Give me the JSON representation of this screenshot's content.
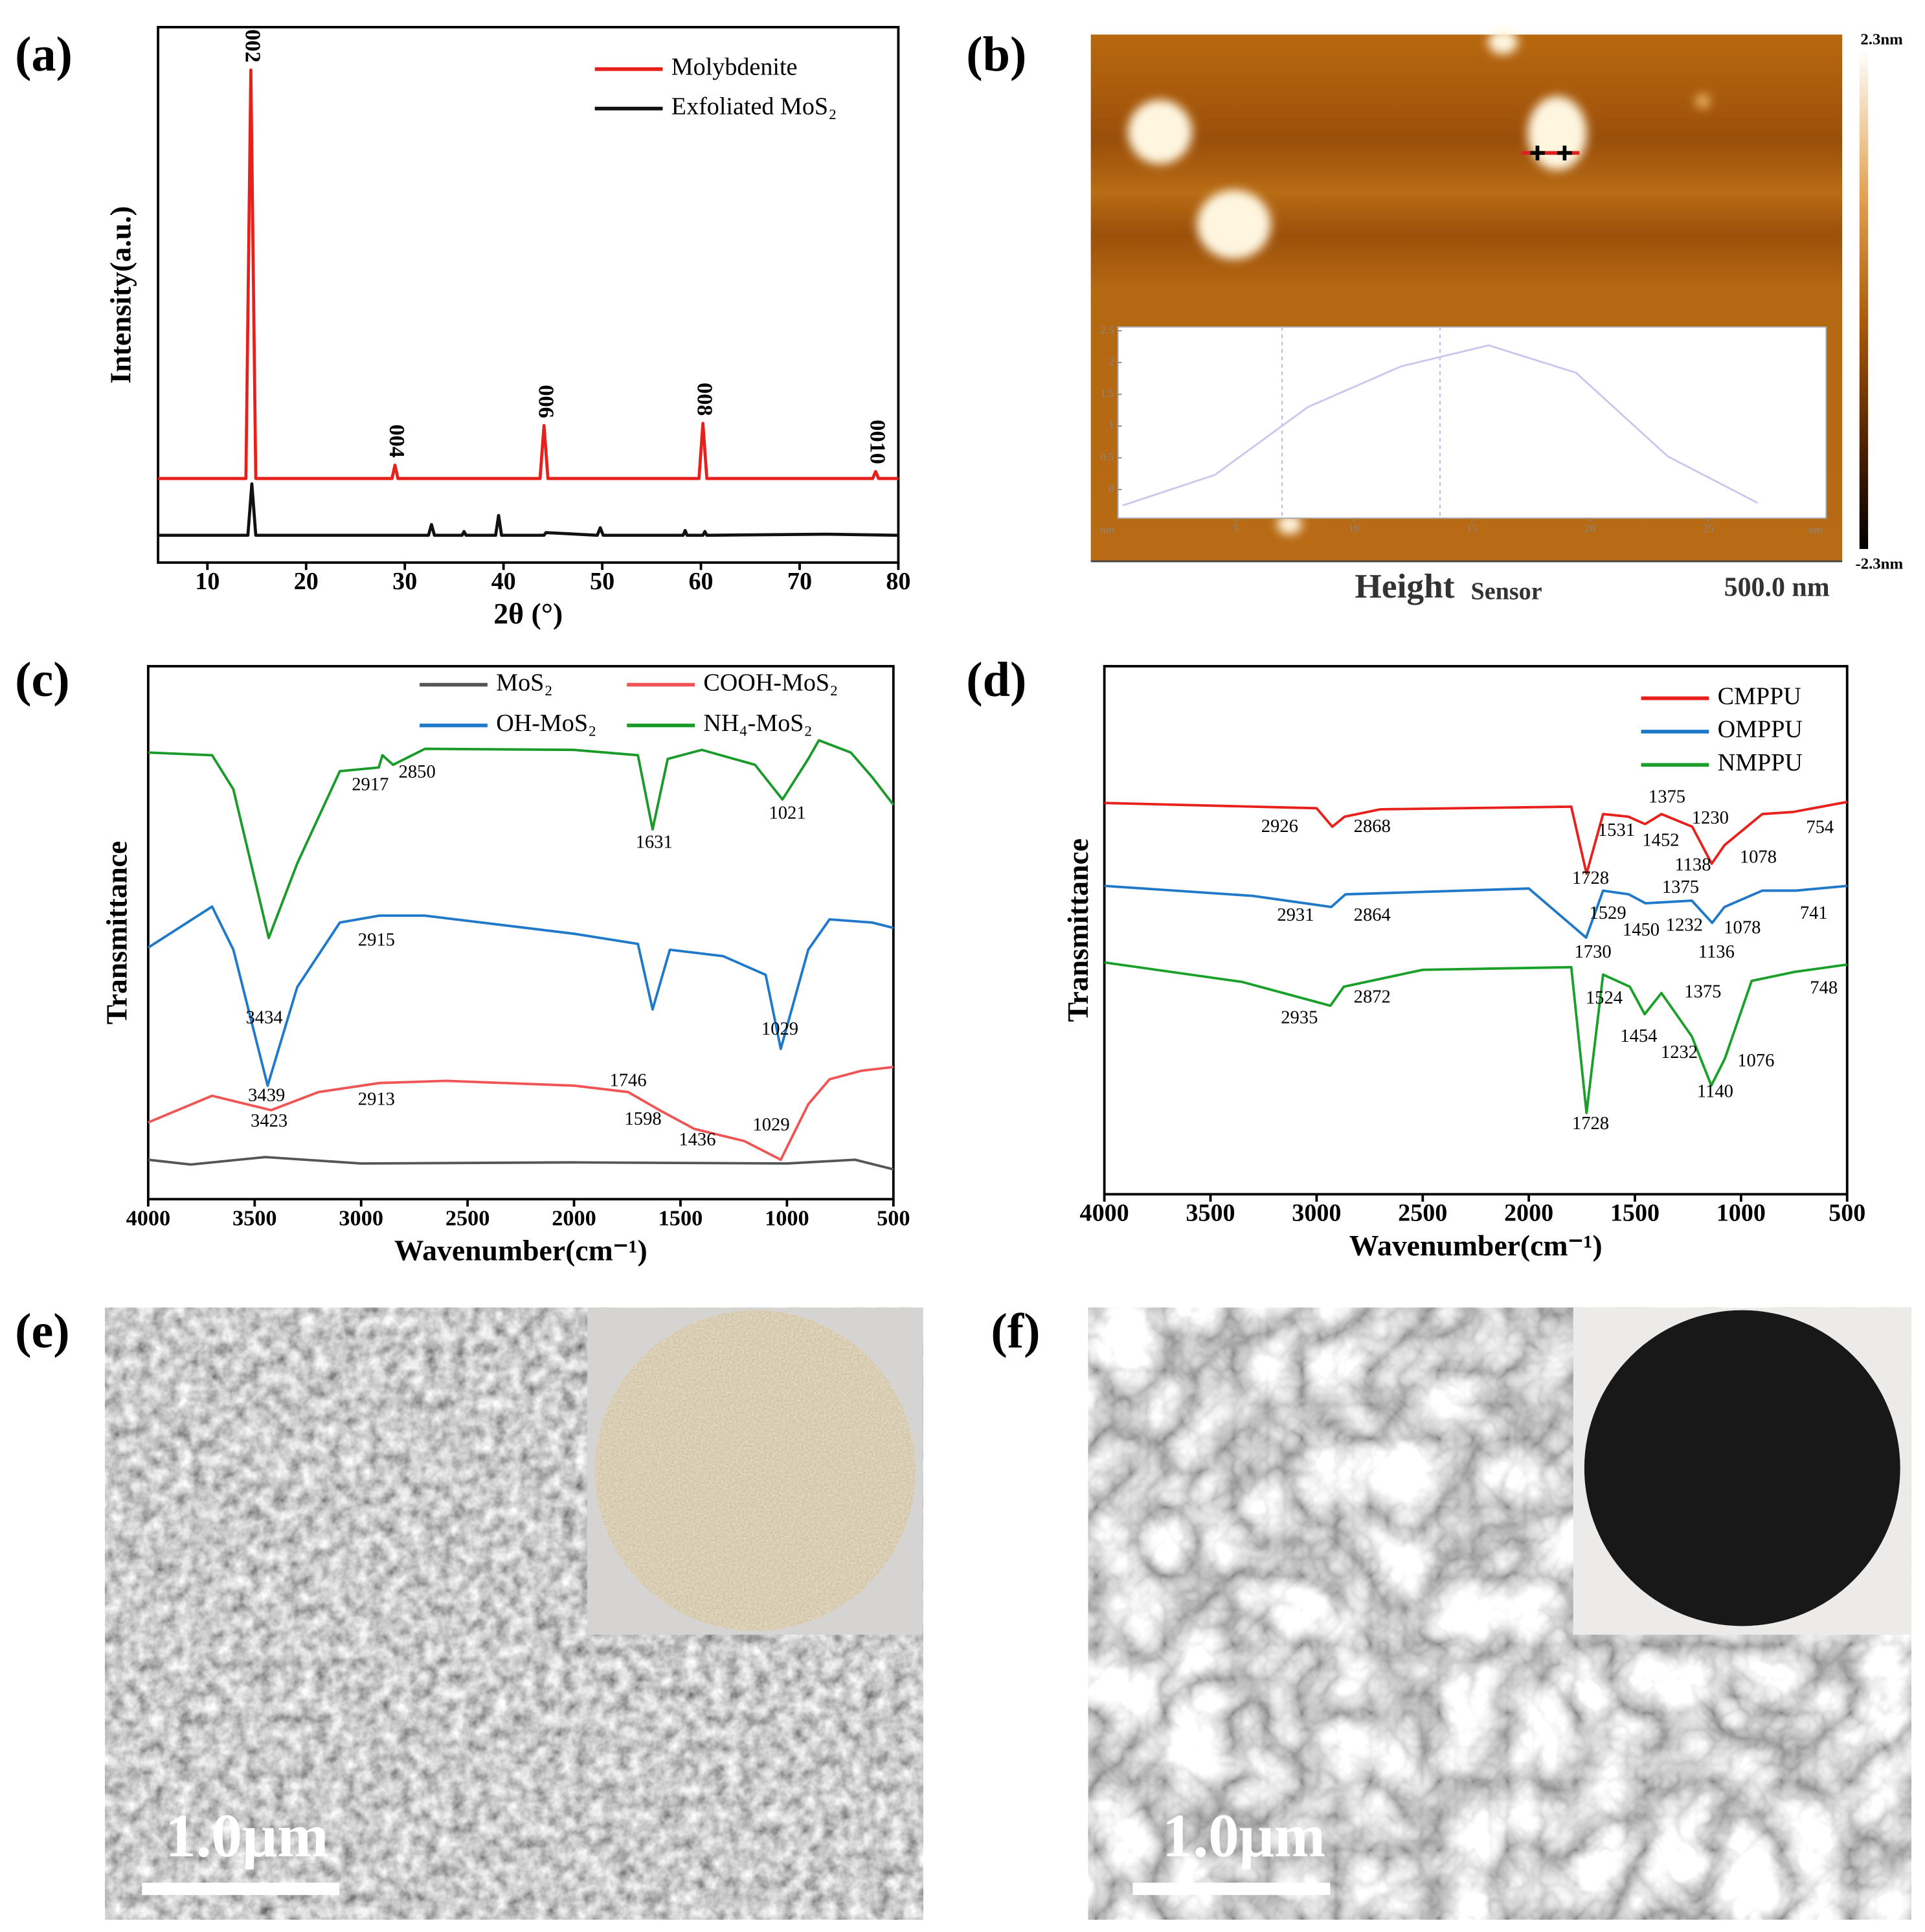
{
  "panel_labels": [
    "(a)",
    "(b)",
    "(c)",
    "(d)",
    "(e)",
    "(f)"
  ],
  "chart_data": [
    {
      "type": "line",
      "xlabel": "2θ (°)",
      "ylabel": "Intensity(a.u.)",
      "xlim": [
        5,
        80
      ],
      "ylim": [
        0,
        100
      ],
      "xticks": [
        10,
        20,
        30,
        40,
        50,
        60,
        70,
        80
      ],
      "legend": "upper right",
      "legend_columns": 1,
      "annotation_rotation": 90,
      "series": [
        {
          "name": "Molybdenite",
          "color": "#e8201c",
          "x": [
            5,
            13.9,
            14.4,
            14.9,
            28.7,
            29.0,
            29.3,
            43.7,
            44.1,
            44.5,
            59.8,
            60.2,
            60.6,
            77.4,
            77.7,
            78.0,
            80
          ],
          "values": [
            15.7,
            15.7,
            92,
            15.7,
            15.7,
            18.2,
            15.7,
            15.7,
            25.6,
            15.7,
            15.7,
            26,
            15.7,
            15.7,
            17,
            15.7,
            15.7
          ]
        },
        {
          "name": "Exfoliated MoS₂",
          "color": "#111111",
          "x": [
            5,
            14.1,
            14.5,
            14.9,
            32.4,
            32.7,
            33.0,
            35.8,
            36.0,
            36.2,
            39.2,
            39.5,
            39.8,
            44.1,
            44.3,
            49.5,
            49.8,
            50.1,
            58.2,
            58.4,
            58.6,
            60.2,
            60.4,
            60.6,
            73,
            80
          ],
          "values": [
            5.1,
            5.1,
            14.7,
            5.1,
            5.1,
            7.1,
            5.1,
            5.1,
            5.8,
            5.1,
            5.1,
            8.8,
            5.1,
            5.1,
            5.6,
            5.1,
            6.5,
            5.1,
            5.1,
            6,
            5.1,
            5.1,
            5.8,
            5.1,
            5.3,
            5.1
          ]
        }
      ],
      "annotations": [
        {
          "text": "002",
          "x": 14.4,
          "y": 92
        },
        {
          "text": "004",
          "x": 29.0,
          "y": 18.2
        },
        {
          "text": "006",
          "x": 44.1,
          "y": 25.6
        },
        {
          "text": "008",
          "x": 60.2,
          "y": 26
        },
        {
          "text": "0010",
          "x": 77.7,
          "y": 17
        }
      ]
    },
    {
      "type": "line",
      "xlabel": "Wavenumber(cm⁻¹)",
      "ylabel": "Transmittance",
      "xlim": [
        4000,
        500
      ],
      "ylim": [
        0,
        100
      ],
      "xticks": [
        4000,
        3500,
        3000,
        2500,
        2000,
        1500,
        1000,
        500
      ],
      "legend": "upper right",
      "legend_columns": 2,
      "series": [
        {
          "name": "MoS₂",
          "color": "#555555",
          "x": [
            4000,
            3800,
            3450,
            3000,
            2000,
            1000,
            680,
            500
          ],
          "values": [
            7.4,
            6.5,
            7.9,
            6.7,
            6.9,
            6.7,
            7.4,
            5.6
          ]
        },
        {
          "name": "COOH-MoS₂",
          "color": "#f05555",
          "x": [
            4000,
            3700,
            3423,
            3200,
            2913,
            2600,
            2000,
            1746,
            1598,
            1436,
            1200,
            1029,
            900,
            800,
            650,
            500
          ],
          "values": [
            14.4,
            19.4,
            16.7,
            20.1,
            21.8,
            22.2,
            21.3,
            20.1,
            16.7,
            13.2,
            10.9,
            7.4,
            17.8,
            22.5,
            24.1,
            24.8
          ]
        },
        {
          "name": "OH-MoS₂",
          "color": "#1f78c8",
          "x": [
            4000,
            3700,
            3600,
            3439,
            3300,
            3100,
            2915,
            2700,
            2000,
            1700,
            1631,
            1550,
            1300,
            1100,
            1029,
            900,
            800,
            600,
            500
          ],
          "values": [
            47.2,
            54.9,
            46.8,
            21.3,
            39.8,
            51.9,
            53.2,
            53.2,
            49.8,
            47.9,
            35.6,
            46.8,
            45.6,
            42.1,
            28.2,
            46.8,
            52.5,
            51.9,
            50.9
          ]
        },
        {
          "name": "NH₄-MoS₂",
          "color": "#1a9a2a",
          "x": [
            4000,
            3700,
            3600,
            3434,
            3300,
            3100,
            2917,
            2900,
            2850,
            2700,
            2000,
            1700,
            1631,
            1560,
            1400,
            1150,
            1021,
            900,
            850,
            700,
            600,
            500
          ],
          "values": [
            83.8,
            83.3,
            76.9,
            49,
            63,
            80.3,
            81,
            83.3,
            81.5,
            84.5,
            84.3,
            83.3,
            69.4,
            82.6,
            84.3,
            81.5,
            75,
            82.6,
            86.1,
            83.8,
            79.2,
            74
          ]
        }
      ],
      "annotations": [
        {
          "text": "2917",
          "x": 2957,
          "y": 77.5
        },
        {
          "text": "2850",
          "x": 2737,
          "y": 79.9
        },
        {
          "text": "1631",
          "x": 1624,
          "y": 66.7
        },
        {
          "text": "1021",
          "x": 998,
          "y": 72.2
        },
        {
          "text": "3434",
          "x": 3455,
          "y": 33.8
        },
        {
          "text": "2915",
          "x": 2928,
          "y": 48.4
        },
        {
          "text": "1029",
          "x": 1033,
          "y": 31.7
        },
        {
          "text": "3439",
          "x": 3444,
          "y": 19.2
        },
        {
          "text": "3423",
          "x": 3432,
          "y": 14.4
        },
        {
          "text": "2913",
          "x": 2928,
          "y": 18.5
        },
        {
          "text": "1746",
          "x": 1746,
          "y": 22
        },
        {
          "text": "1598",
          "x": 1676,
          "y": 14.8
        },
        {
          "text": "1436",
          "x": 1421,
          "y": 10.9
        },
        {
          "text": "1029",
          "x": 1074,
          "y": 13.7
        }
      ]
    },
    {
      "type": "line",
      "xlabel": "Wavenumber(cm⁻¹)",
      "ylabel": "Transmittance",
      "xlim": [
        4000,
        500
      ],
      "ylim": [
        0,
        100
      ],
      "xticks": [
        4000,
        3500,
        3000,
        2500,
        2000,
        1500,
        1000,
        500
      ],
      "legend": "upper right",
      "legend_columns": 1,
      "series": [
        {
          "name": "CMPPU",
          "color": "#e8201c",
          "x": [
            4000,
            3000,
            2926,
            2868,
            2700,
            1800,
            1728,
            1650,
            1531,
            1452,
            1375,
            1230,
            1138,
            1078,
            900,
            754,
            500
          ],
          "values": [
            74.1,
            73.1,
            69.6,
            71.5,
            72.9,
            73.4,
            60.7,
            72,
            71.5,
            70.1,
            72,
            69.6,
            62.6,
            66.1,
            72,
            72.4,
            74.3
          ]
        },
        {
          "name": "OMPPU",
          "color": "#1f78c8",
          "x": [
            4000,
            3300,
            2931,
            2864,
            2000,
            1730,
            1650,
            1529,
            1450,
            1232,
            1136,
            1078,
            900,
            741,
            500
          ],
          "values": [
            58.4,
            56.5,
            54.4,
            56.8,
            57.9,
            48.6,
            57.5,
            56.8,
            55.1,
            55.6,
            51.4,
            54.4,
            57.5,
            57.5,
            58.4
          ]
        },
        {
          "name": "NMPPU",
          "color": "#1aa02a",
          "x": [
            4000,
            3350,
            2935,
            2872,
            2500,
            1800,
            1728,
            1650,
            1524,
            1454,
            1375,
            1232,
            1140,
            1076,
            950,
            748,
            500
          ],
          "values": [
            43.9,
            40.2,
            35.7,
            39.3,
            42.5,
            43,
            15.4,
            41.6,
            39.3,
            34.1,
            38.1,
            29.9,
            20.6,
            25.7,
            40.4,
            42.1,
            43.5
          ]
        }
      ],
      "annotations": [
        {
          "text": "2926",
          "x": 3174,
          "y": 69.4
        },
        {
          "text": "2868",
          "x": 2738,
          "y": 69.4
        },
        {
          "text": "1531",
          "x": 1587,
          "y": 68.7
        },
        {
          "text": "1375",
          "x": 1349,
          "y": 75
        },
        {
          "text": "1452",
          "x": 1378,
          "y": 66.8
        },
        {
          "text": "1230",
          "x": 1145,
          "y": 71
        },
        {
          "text": "1138",
          "x": 1227,
          "y": 62.1
        },
        {
          "text": "1078",
          "x": 919,
          "y": 63.6
        },
        {
          "text": "754",
          "x": 628,
          "y": 69.2
        },
        {
          "text": "1728",
          "x": 1709,
          "y": 59.6
        },
        {
          "text": "2931",
          "x": 3099,
          "y": 52.6
        },
        {
          "text": "2864",
          "x": 2738,
          "y": 52.6
        },
        {
          "text": "1529",
          "x": 1628,
          "y": 53
        },
        {
          "text": "1375",
          "x": 1285,
          "y": 57.9
        },
        {
          "text": "1450",
          "x": 1471,
          "y": 49.8
        },
        {
          "text": "1232",
          "x": 1267,
          "y": 50.7
        },
        {
          "text": "1078",
          "x": 994,
          "y": 50.2
        },
        {
          "text": "741",
          "x": 657,
          "y": 53
        },
        {
          "text": "1730",
          "x": 1698,
          "y": 45.6
        },
        {
          "text": "1136",
          "x": 1116,
          "y": 45.6
        },
        {
          "text": "2935",
          "x": 3081,
          "y": 33.2
        },
        {
          "text": "2872",
          "x": 2738,
          "y": 37.1
        },
        {
          "text": "1524",
          "x": 1645,
          "y": 36.9
        },
        {
          "text": "1375",
          "x": 1180,
          "y": 38.1
        },
        {
          "text": "1454",
          "x": 1482,
          "y": 29.7
        },
        {
          "text": "1232",
          "x": 1291,
          "y": 26.6
        },
        {
          "text": "1076",
          "x": 930,
          "y": 25
        },
        {
          "text": "748",
          "x": 610,
          "y": 38.8
        },
        {
          "text": "1140",
          "x": 1122,
          "y": 19.2
        },
        {
          "text": "1728",
          "x": 1709,
          "y": 13.1
        }
      ]
    },
    {
      "type": "line",
      "xunit": "nm",
      "yunit": "nm",
      "xlim": [
        0,
        30
      ],
      "ylim": [
        -0.45,
        2.56
      ],
      "xticks": [
        5,
        10,
        15,
        20,
        25
      ],
      "yticks": [
        0,
        0.5,
        1,
        1.5,
        2,
        2.5
      ],
      "series": [
        {
          "color": "#c8c8ee",
          "x": [
            0.2,
            4.1,
            8.05,
            12,
            15.7,
            19.4,
            23.3,
            27.1
          ],
          "values": [
            -0.25,
            0.23,
            1.3,
            1.94,
            2.27,
            1.84,
            0.52,
            -0.21
          ]
        }
      ]
    }
  ],
  "afm": {
    "colorbar_max": "2.3nm",
    "colorbar_min": "-2.3nm",
    "channel": "Height",
    "channel_sub": "Sensor",
    "scale": "500.0 nm"
  },
  "sem": [
    {
      "scale_bar": "1.0μm"
    },
    {
      "scale_bar": "1.0μm"
    }
  ]
}
